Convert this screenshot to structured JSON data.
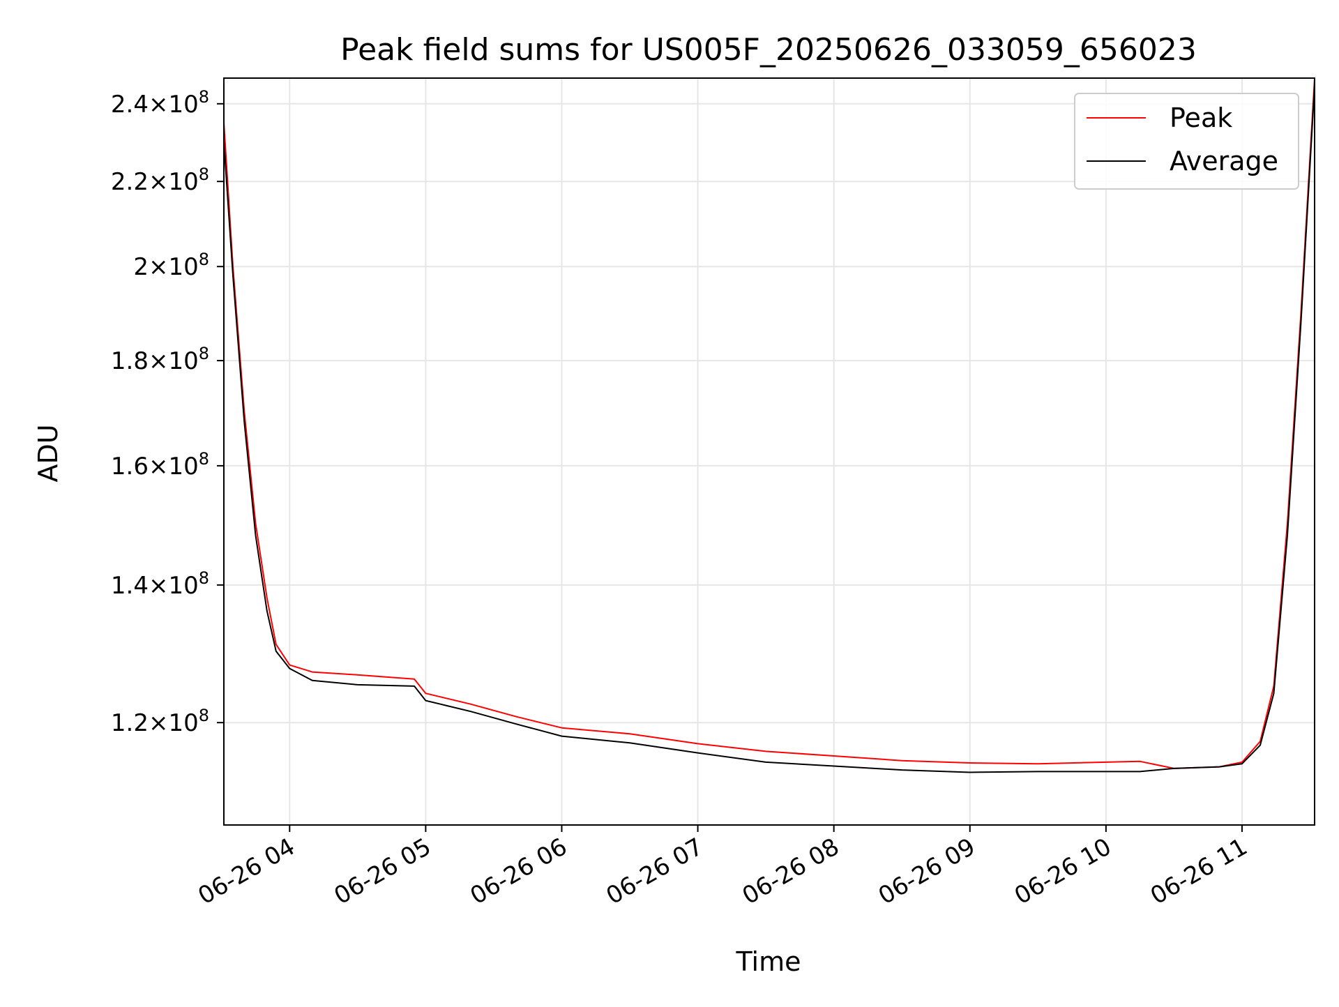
{
  "chart_data": {
    "type": "line",
    "title": "Peak field sums for US005F_20250626_033059_656023",
    "xlabel": "Time",
    "ylabel": "ADU",
    "yscale": "log",
    "xlim": [
      "2025-06-26 03:31",
      "2025-06-26 11:32"
    ],
    "ylim": [
      107000000,
      247000000
    ],
    "grid": true,
    "legend_position": "top-right",
    "x_ticks": [
      {
        "value": "2025-06-26 04:00",
        "label": "06-26 04"
      },
      {
        "value": "2025-06-26 05:00",
        "label": "06-26 05"
      },
      {
        "value": "2025-06-26 06:00",
        "label": "06-26 06"
      },
      {
        "value": "2025-06-26 07:00",
        "label": "06-26 07"
      },
      {
        "value": "2025-06-26 08:00",
        "label": "06-26 08"
      },
      {
        "value": "2025-06-26 09:00",
        "label": "06-26 09"
      },
      {
        "value": "2025-06-26 10:00",
        "label": "06-26 10"
      },
      {
        "value": "2025-06-26 11:00",
        "label": "06-26 11"
      }
    ],
    "y_ticks": [
      {
        "value": 120000000,
        "mantissa": "1.2",
        "exponent": "8"
      },
      {
        "value": 140000000,
        "mantissa": "1.4",
        "exponent": "8"
      },
      {
        "value": 160000000,
        "mantissa": "1.6",
        "exponent": "8"
      },
      {
        "value": 180000000,
        "mantissa": "1.8",
        "exponent": "8"
      },
      {
        "value": 200000000,
        "mantissa": "2",
        "exponent": "8"
      },
      {
        "value": 220000000,
        "mantissa": "2.2",
        "exponent": "8"
      },
      {
        "value": 240000000,
        "mantissa": "2.4",
        "exponent": "8"
      }
    ],
    "series": [
      {
        "name": "Peak",
        "color": "#ff0000",
        "points": [
          [
            "2025-06-26 03:31",
            235000000
          ],
          [
            "2025-06-26 03:35",
            200000000
          ],
          [
            "2025-06-26 03:40",
            170000000
          ],
          [
            "2025-06-26 03:45",
            150000000
          ],
          [
            "2025-06-26 03:50",
            138000000
          ],
          [
            "2025-06-26 03:54",
            131000000
          ],
          [
            "2025-06-26 04:00",
            128000000
          ],
          [
            "2025-06-26 04:10",
            127000000
          ],
          [
            "2025-06-26 04:30",
            126600000
          ],
          [
            "2025-06-26 04:55",
            126000000
          ],
          [
            "2025-06-26 05:00",
            124000000
          ],
          [
            "2025-06-26 05:20",
            122500000
          ],
          [
            "2025-06-26 05:40",
            120800000
          ],
          [
            "2025-06-26 06:00",
            119300000
          ],
          [
            "2025-06-26 06:30",
            118500000
          ],
          [
            "2025-06-26 07:00",
            117200000
          ],
          [
            "2025-06-26 07:30",
            116200000
          ],
          [
            "2025-06-26 08:00",
            115600000
          ],
          [
            "2025-06-26 08:30",
            115000000
          ],
          [
            "2025-06-26 09:00",
            114700000
          ],
          [
            "2025-06-26 09:30",
            114600000
          ],
          [
            "2025-06-26 10:00",
            114800000
          ],
          [
            "2025-06-26 10:15",
            114900000
          ],
          [
            "2025-06-26 10:30",
            114000000
          ],
          [
            "2025-06-26 10:50",
            114200000
          ],
          [
            "2025-06-26 11:00",
            114800000
          ],
          [
            "2025-06-26 11:08",
            117500000
          ],
          [
            "2025-06-26 11:14",
            125000000
          ],
          [
            "2025-06-26 11:20",
            150000000
          ],
          [
            "2025-06-26 11:26",
            190000000
          ],
          [
            "2025-06-26 11:32",
            247000000
          ]
        ]
      },
      {
        "name": "Average",
        "color": "#000000",
        "points": [
          [
            "2025-06-26 03:31",
            230000000
          ],
          [
            "2025-06-26 03:35",
            198000000
          ],
          [
            "2025-06-26 03:40",
            168000000
          ],
          [
            "2025-06-26 03:45",
            148000000
          ],
          [
            "2025-06-26 03:50",
            136000000
          ],
          [
            "2025-06-26 03:54",
            130000000
          ],
          [
            "2025-06-26 04:00",
            127500000
          ],
          [
            "2025-06-26 04:10",
            125800000
          ],
          [
            "2025-06-26 04:30",
            125200000
          ],
          [
            "2025-06-26 04:55",
            125000000
          ],
          [
            "2025-06-26 05:00",
            123000000
          ],
          [
            "2025-06-26 05:20",
            121500000
          ],
          [
            "2025-06-26 05:40",
            119800000
          ],
          [
            "2025-06-26 06:00",
            118200000
          ],
          [
            "2025-06-26 06:30",
            117300000
          ],
          [
            "2025-06-26 07:00",
            116000000
          ],
          [
            "2025-06-26 07:30",
            114800000
          ],
          [
            "2025-06-26 08:00",
            114300000
          ],
          [
            "2025-06-26 08:30",
            113800000
          ],
          [
            "2025-06-26 09:00",
            113500000
          ],
          [
            "2025-06-26 09:30",
            113600000
          ],
          [
            "2025-06-26 10:00",
            113600000
          ],
          [
            "2025-06-26 10:15",
            113600000
          ],
          [
            "2025-06-26 10:30",
            114000000
          ],
          [
            "2025-06-26 10:50",
            114200000
          ],
          [
            "2025-06-26 11:00",
            114600000
          ],
          [
            "2025-06-26 11:08",
            117000000
          ],
          [
            "2025-06-26 11:14",
            124000000
          ],
          [
            "2025-06-26 11:20",
            148000000
          ],
          [
            "2025-06-26 11:26",
            188000000
          ],
          [
            "2025-06-26 11:32",
            245000000
          ]
        ]
      }
    ]
  }
}
